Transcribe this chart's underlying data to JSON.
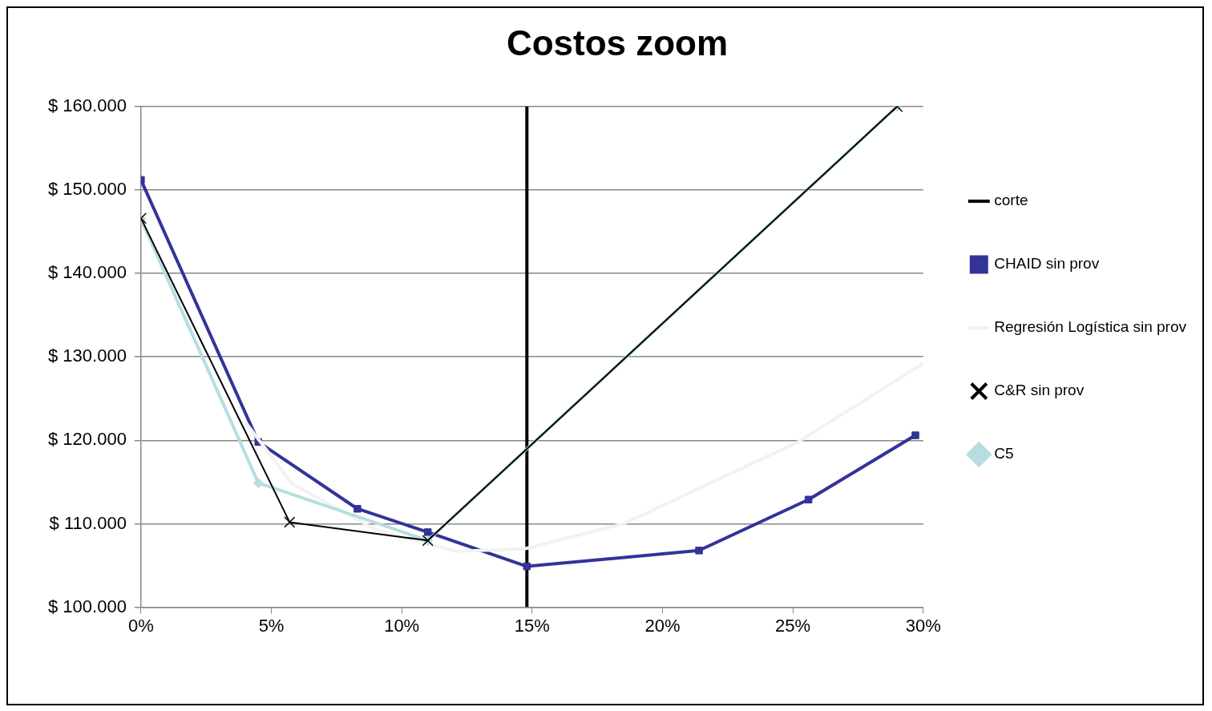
{
  "chart_data": {
    "type": "line",
    "title": "Costos zoom",
    "legend": "right",
    "grid": "y",
    "line_style": "solid",
    "xlim": [
      0,
      30
    ],
    "xticks": [
      {
        "value": 0,
        "label": "0%"
      },
      {
        "value": 5,
        "label": "5%"
      },
      {
        "value": 10,
        "label": "10%"
      },
      {
        "value": 15,
        "label": "15%"
      },
      {
        "value": 20,
        "label": "20%"
      },
      {
        "value": 25,
        "label": "25%"
      },
      {
        "value": 30,
        "label": "30%"
      }
    ],
    "ylim": [
      100000,
      160000
    ],
    "yticks": [
      {
        "value": 100000,
        "label": "$ 100.000"
      },
      {
        "value": 110000,
        "label": "$ 110.000"
      },
      {
        "value": 120000,
        "label": "$ 120.000"
      },
      {
        "value": 130000,
        "label": "$ 130.000"
      },
      {
        "value": 140000,
        "label": "$ 140.000"
      },
      {
        "value": 150000,
        "label": "$ 150.000"
      },
      {
        "value": 160000,
        "label": "$ 160.000"
      }
    ],
    "series": [
      {
        "name": "corte",
        "color": "#000000",
        "marker": "none",
        "x": [
          14.8,
          14.8
        ],
        "values": [
          100000,
          160000
        ]
      },
      {
        "name": "CHAID sin prov",
        "color": "#333399",
        "marker": "square",
        "x": [
          0,
          4.5,
          8.3,
          11,
          14.8,
          21.4,
          25.6,
          29.7
        ],
        "values": [
          151200,
          119800,
          111800,
          109000,
          104900,
          106800,
          112900,
          120600
        ]
      },
      {
        "name": "Regresión Logística sin prov",
        "color": "#f2f2f2",
        "marker": "none",
        "x": [
          4.0,
          5.8,
          9.0,
          12.1,
          14.7,
          18.5,
          25.2,
          30
        ],
        "values": [
          122200,
          114800,
          109300,
          106700,
          107000,
          110000,
          119800,
          129200
        ]
      },
      {
        "name": "C&R sin prov",
        "color": "#000000",
        "marker": "cross",
        "x": [
          0,
          5.7,
          11,
          29
        ],
        "values": [
          146600,
          110200,
          108000,
          160000
        ]
      },
      {
        "name": "C5",
        "color": "#b7dde0",
        "marker": "diamond",
        "x": [
          0,
          4.5,
          11,
          29
        ],
        "values": [
          146500,
          114900,
          108000,
          160000
        ]
      }
    ]
  }
}
